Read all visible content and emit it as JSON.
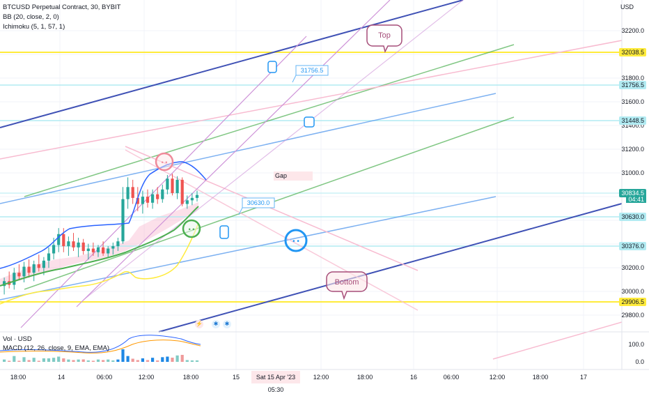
{
  "legend": {
    "title": "BTCUSD Perpetual Contract, 30, BYBIT",
    "bb": "BB (20, close, 2, 0)",
    "ichimoku": "Ichimoku (5, 1, 57, 1)",
    "vol": "Vol · USD",
    "macd": "MACD (12, 26, close, 9, EMA, EMA)"
  },
  "scale_unit": "USD",
  "price_ticks": [
    "32200.0",
    "31800.0",
    "31600.0",
    "31400.0",
    "31200.0",
    "31000.0",
    "30200.0",
    "30000.0",
    "29800.0"
  ],
  "price_labels": [
    {
      "text": "32038.5",
      "kind": "yellow"
    },
    {
      "text": "31756.5",
      "kind": "cyan"
    },
    {
      "text": "31448.5",
      "kind": "cyan"
    },
    {
      "text": "30834.5",
      "kind": "current"
    },
    {
      "text": "30630.0",
      "kind": "cyan"
    },
    {
      "text": "30376.0",
      "kind": "cyan"
    },
    {
      "text": "29906.5",
      "kind": "yellow"
    }
  ],
  "countdown": "04:41",
  "macd_ticks": [
    "100.0",
    "0.0"
  ],
  "time_ticks": [
    "18:00",
    "14",
    "06:00",
    "12:00",
    "18:00",
    "15",
    "12:00",
    "18:00",
    "16",
    "06:00",
    "12:00",
    "18:00",
    "17"
  ],
  "date_label": "Sat 15 Apr '23  05:30",
  "annotations": {
    "top": "Top",
    "bottom": "Bottom",
    "gap": "Gap",
    "callout1": "31756.5",
    "callout2": "30630.0"
  },
  "colors": {
    "up": "#26a69a",
    "down": "#ef5350",
    "bb": "#2962ff",
    "yellow": "#ffeb3b",
    "cyan": "#b2ebf2",
    "green": "#4caf50",
    "pink": "#f8bbd0",
    "violet": "#ce93d8",
    "navy": "#3f51b5",
    "blue": "#5c9ded"
  },
  "chart_data": {
    "type": "candlestick",
    "title": "BTCUSD Perpetual Contract, 30, BYBIT",
    "ylabel": "USD",
    "ylim": [
      29700,
      32450
    ],
    "timeframe": "30",
    "horizontal_levels": [
      32038.5,
      31756.5,
      31448.5,
      30834.5,
      30630.0,
      30376.0,
      29906.5
    ],
    "current_price": 30834.5,
    "candles": [
      {
        "o": 30080,
        "h": 30150,
        "l": 30010,
        "c": 30120
      },
      {
        "o": 30120,
        "h": 30200,
        "l": 30060,
        "c": 30090
      },
      {
        "o": 30090,
        "h": 30230,
        "l": 30050,
        "c": 30190
      },
      {
        "o": 30190,
        "h": 30260,
        "l": 30130,
        "c": 30160
      },
      {
        "o": 30160,
        "h": 30280,
        "l": 30110,
        "c": 30240
      },
      {
        "o": 30240,
        "h": 30300,
        "l": 30150,
        "c": 30190
      },
      {
        "o": 30190,
        "h": 30290,
        "l": 30120,
        "c": 30260
      },
      {
        "o": 30260,
        "h": 30340,
        "l": 30200,
        "c": 30230
      },
      {
        "o": 30230,
        "h": 30320,
        "l": 30170,
        "c": 30290
      },
      {
        "o": 30290,
        "h": 30400,
        "l": 30230,
        "c": 30350
      },
      {
        "o": 30350,
        "h": 30480,
        "l": 30300,
        "c": 30420
      },
      {
        "o": 30420,
        "h": 30560,
        "l": 30360,
        "c": 30510
      },
      {
        "o": 30510,
        "h": 30560,
        "l": 30360,
        "c": 30410
      },
      {
        "o": 30410,
        "h": 30490,
        "l": 30330,
        "c": 30450
      },
      {
        "o": 30450,
        "h": 30520,
        "l": 30370,
        "c": 30400
      },
      {
        "o": 30400,
        "h": 30480,
        "l": 30320,
        "c": 30440
      },
      {
        "o": 30440,
        "h": 30470,
        "l": 30340,
        "c": 30370
      },
      {
        "o": 30370,
        "h": 30430,
        "l": 30300,
        "c": 30390
      },
      {
        "o": 30390,
        "h": 30440,
        "l": 30330,
        "c": 30360
      },
      {
        "o": 30360,
        "h": 30420,
        "l": 30320,
        "c": 30400
      },
      {
        "o": 30400,
        "h": 30450,
        "l": 30330,
        "c": 30350
      },
      {
        "o": 30350,
        "h": 30410,
        "l": 30310,
        "c": 30390
      },
      {
        "o": 30390,
        "h": 30440,
        "l": 30340,
        "c": 30410
      },
      {
        "o": 30410,
        "h": 30480,
        "l": 30370,
        "c": 30450
      },
      {
        "o": 30450,
        "h": 30900,
        "l": 30430,
        "c": 30800
      },
      {
        "o": 30800,
        "h": 30980,
        "l": 30720,
        "c": 30900
      },
      {
        "o": 30900,
        "h": 30960,
        "l": 30760,
        "c": 30810
      },
      {
        "o": 30810,
        "h": 30900,
        "l": 30700,
        "c": 30760
      },
      {
        "o": 30760,
        "h": 30870,
        "l": 30680,
        "c": 30820
      },
      {
        "o": 30820,
        "h": 30880,
        "l": 30730,
        "c": 30770
      },
      {
        "o": 30770,
        "h": 30880,
        "l": 30720,
        "c": 30840
      },
      {
        "o": 30840,
        "h": 30900,
        "l": 30760,
        "c": 30800
      },
      {
        "o": 30800,
        "h": 30920,
        "l": 30770,
        "c": 30880
      },
      {
        "o": 30880,
        "h": 31000,
        "l": 30840,
        "c": 30970
      },
      {
        "o": 30970,
        "h": 31010,
        "l": 30830,
        "c": 30850
      },
      {
        "o": 30850,
        "h": 30990,
        "l": 30800,
        "c": 30960
      },
      {
        "o": 30960,
        "h": 30980,
        "l": 30740,
        "c": 30760
      },
      {
        "o": 30760,
        "h": 30830,
        "l": 30720,
        "c": 30790
      },
      {
        "o": 30790,
        "h": 30850,
        "l": 30750,
        "c": 30810
      },
      {
        "o": 30810,
        "h": 30870,
        "l": 30780,
        "c": 30834.5
      }
    ]
  }
}
